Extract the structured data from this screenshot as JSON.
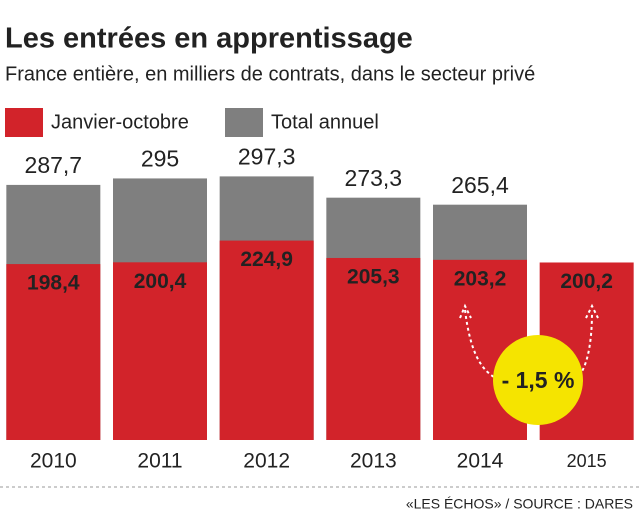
{
  "chart_data": {
    "type": "bar",
    "title": "Les entrées en apprentissage",
    "subtitle": "France entière, en milliers de contrats, dans le secteur privé",
    "categories": [
      "2010",
      "2011",
      "2012",
      "2013",
      "2014",
      "2015"
    ],
    "series": [
      {
        "name": "Total annuel",
        "color": "#7f7f7f",
        "values": [
          287.7,
          295,
          297.3,
          273.3,
          265.4,
          null
        ],
        "value_labels": [
          "287,7",
          "295",
          "297,3",
          "273,3",
          "265,4",
          null
        ]
      },
      {
        "name": "Janvier-octobre",
        "color": "#d2232a",
        "values": [
          198.4,
          200.4,
          224.9,
          205.3,
          203.2,
          200.2
        ],
        "value_labels": [
          "198,4",
          "200,4",
          "224,9",
          "205,3",
          "203,2",
          "200,2"
        ]
      }
    ],
    "ylim": [
      0,
      300
    ],
    "annotation": "- 1,5 %",
    "source": "«LES ÉCHOS» / SOURCE : DARES"
  }
}
